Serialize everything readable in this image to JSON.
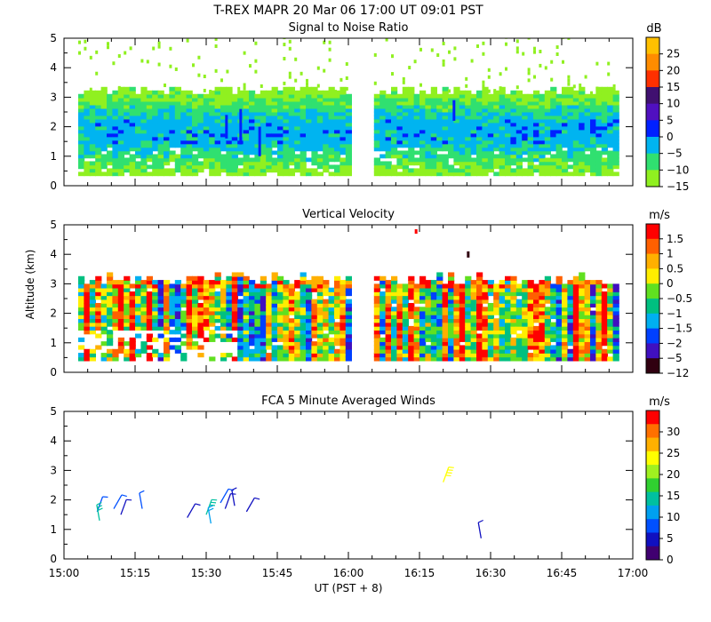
{
  "header": {
    "title": "T-REX   MAPR 20 Mar 06   17:00 UT   09:01   PST"
  },
  "x_axis": {
    "label": "UT  (PST + 8)",
    "ticks": [
      "15:00",
      "15:15",
      "15:30",
      "15:45",
      "16:00",
      "16:15",
      "16:30",
      "16:45",
      "17:00"
    ],
    "range_minutes": [
      0,
      120
    ]
  },
  "y_axis": {
    "label": "Altitude (km)",
    "ticks": [
      "0",
      "1",
      "2",
      "3",
      "4",
      "5"
    ],
    "range_km": [
      0,
      5
    ]
  },
  "chart_data": [
    {
      "type": "heatmap",
      "title": "Signal to Noise Ratio",
      "unit": "dB",
      "colorbar": {
        "labels": [
          "25",
          "20",
          "15",
          "10",
          "5",
          "0",
          "−5",
          "−10",
          "−15"
        ],
        "colors": [
          "#ffc000",
          "#ff8c00",
          "#ff3000",
          "#401070",
          "#5010c0",
          "#0020ff",
          "#00b4f0",
          "#30e070",
          "#90f020"
        ]
      },
      "xlim_minutes": [
        0,
        120
      ],
      "ylim_km": [
        0,
        5
      ],
      "data_gap_minutes": [
        60,
        65
      ],
      "profile": [
        {
          "alt_km": 0.4,
          "value": -15
        },
        {
          "alt_km": 0.9,
          "value": -10
        },
        {
          "alt_km": 1.5,
          "value": -5
        },
        {
          "alt_km": 2.1,
          "value": -5
        },
        {
          "alt_km": 2.6,
          "value": -10
        },
        {
          "alt_km": 3.1,
          "value": -15
        }
      ]
    },
    {
      "type": "heatmap",
      "title": "Vertical Velocity",
      "unit": "m/s",
      "colorbar": {
        "labels": [
          "1.5",
          "1",
          "0.5",
          "0",
          "−0.5",
          "−1",
          "−1.5",
          "−2",
          "−5",
          "−12"
        ],
        "colors": [
          "#ff0000",
          "#ff6000",
          "#ffb000",
          "#ffee00",
          "#60e020",
          "#00c080",
          "#00b0f0",
          "#0040ff",
          "#4010c0",
          "#300010"
        ]
      },
      "xlim_minutes": [
        0,
        120
      ],
      "ylim_km": [
        0,
        5
      ],
      "data_gap_minutes": [
        60,
        65
      ],
      "echo_top_km": 3.3
    },
    {
      "type": "scatter",
      "title": "FCA 5 Minute Averaged Winds",
      "unit": "m/s",
      "marker": "wind-barb",
      "colorbar": {
        "labels": [
          "30",
          "25",
          "20",
          "15",
          "10",
          "5",
          "0"
        ],
        "colors": [
          "#ff0000",
          "#ff7000",
          "#ffb000",
          "#ffff00",
          "#a0f020",
          "#30d030",
          "#00c0a0",
          "#00a0f0",
          "#0050ff",
          "#1010c0",
          "#400070"
        ]
      },
      "xlim_minutes": [
        0,
        120
      ],
      "ylim_km": [
        0,
        5
      ],
      "winds": [
        {
          "time_min": 7,
          "alt_km": 1.6,
          "speed_ms": 6
        },
        {
          "time_min": 7.5,
          "alt_km": 1.3,
          "speed_ms": 13
        },
        {
          "time_min": 10.5,
          "alt_km": 1.7,
          "speed_ms": 7
        },
        {
          "time_min": 12,
          "alt_km": 1.5,
          "speed_ms": 4
        },
        {
          "time_min": 16.5,
          "alt_km": 1.7,
          "speed_ms": 6
        },
        {
          "time_min": 26,
          "alt_km": 1.4,
          "speed_ms": 4
        },
        {
          "time_min": 30,
          "alt_km": 1.5,
          "speed_ms": 13
        },
        {
          "time_min": 31,
          "alt_km": 1.2,
          "speed_ms": 10
        },
        {
          "time_min": 33,
          "alt_km": 1.9,
          "speed_ms": 5
        },
        {
          "time_min": 34,
          "alt_km": 1.7,
          "speed_ms": 4
        },
        {
          "time_min": 36,
          "alt_km": 1.8,
          "speed_ms": 3
        },
        {
          "time_min": 38.5,
          "alt_km": 1.6,
          "speed_ms": 3
        },
        {
          "time_min": 80,
          "alt_km": 2.6,
          "speed_ms": 21
        },
        {
          "time_min": 88,
          "alt_km": 0.7,
          "speed_ms": 2
        }
      ]
    }
  ]
}
